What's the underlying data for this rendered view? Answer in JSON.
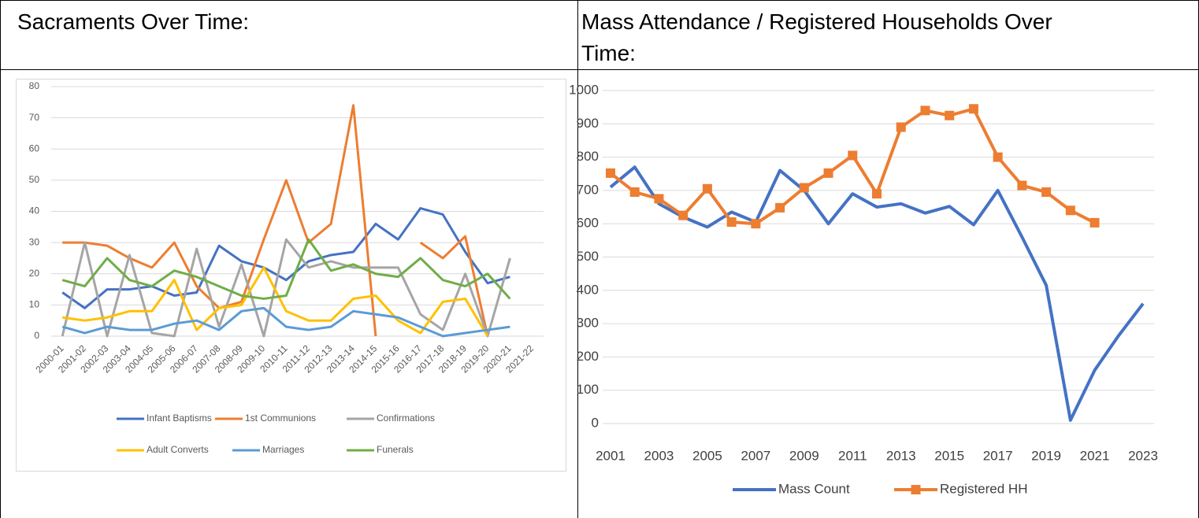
{
  "table": {
    "headers": [
      "Sacraments Over Time:",
      "Mass Attendance / Registered Households Over Time:"
    ]
  },
  "chart_data": [
    {
      "type": "line",
      "categories": [
        "2000-01",
        "2001-02",
        "2002-03",
        "2003-04",
        "2004-05",
        "2005-06",
        "2006-07",
        "2007-08",
        "2008-09",
        "2009-10",
        "2010-11",
        "2011-12",
        "2012-13",
        "2013-14",
        "2014-15",
        "2015-16",
        "2016-17",
        "2017-18",
        "2018-19",
        "2019-20",
        "2020-21",
        "2021-22"
      ],
      "series": [
        {
          "name": "Infant Baptisms",
          "color": "#4472c4",
          "values": [
            14,
            9,
            15,
            15,
            16,
            13,
            14,
            29,
            24,
            22,
            18,
            24,
            26,
            27,
            36,
            31,
            41,
            39,
            27,
            17,
            19,
            null
          ]
        },
        {
          "name": "1st Communions",
          "color": "#ed7d31",
          "values": [
            30,
            30,
            29,
            25,
            22,
            30,
            16,
            9,
            11,
            31,
            50,
            30,
            36,
            74,
            0,
            null,
            30,
            25,
            32,
            0,
            null,
            null
          ]
        },
        {
          "name": "Confirmations",
          "color": "#a5a5a5",
          "values": [
            0,
            30,
            0,
            26,
            1,
            0,
            28,
            3,
            23,
            0,
            31,
            22,
            24,
            22,
            22,
            22,
            7,
            2,
            20,
            0,
            25,
            null
          ]
        },
        {
          "name": "Adult Converts",
          "color": "#ffc000",
          "values": [
            6,
            5,
            6,
            8,
            8,
            18,
            2,
            9,
            10,
            22,
            8,
            5,
            5,
            12,
            13,
            5,
            1,
            11,
            12,
            0,
            null,
            null
          ]
        },
        {
          "name": "Marriages",
          "color": "#5b9bd5",
          "values": [
            3,
            1,
            3,
            2,
            2,
            4,
            5,
            2,
            8,
            9,
            3,
            2,
            3,
            8,
            7,
            6,
            3,
            0,
            1,
            2,
            3,
            null
          ]
        },
        {
          "name": "Funerals",
          "color": "#70ad47",
          "values": [
            18,
            16,
            25,
            18,
            16,
            21,
            19,
            16,
            13,
            12,
            13,
            31,
            21,
            23,
            20,
            19,
            25,
            18,
            16,
            20,
            12,
            null
          ]
        }
      ],
      "ylim": [
        0,
        80
      ],
      "yticks": [
        0,
        10,
        20,
        30,
        40,
        50,
        60,
        70,
        80
      ],
      "grid": true,
      "legend": "bottom"
    },
    {
      "type": "line",
      "x": [
        2001,
        2002,
        2003,
        2004,
        2005,
        2006,
        2007,
        2008,
        2009,
        2010,
        2011,
        2012,
        2013,
        2014,
        2015,
        2016,
        2017,
        2018,
        2019,
        2020,
        2021,
        2022,
        2023
      ],
      "series": [
        {
          "name": "Mass Count",
          "color": "#4472c4",
          "values": [
            710,
            770,
            660,
            620,
            590,
            635,
            605,
            760,
            700,
            600,
            690,
            650,
            660,
            632,
            652,
            597,
            700,
            560,
            415,
            10,
            160,
            265,
            360
          ]
        },
        {
          "name": "Registered HH",
          "color": "#ed7d31",
          "marker": "square",
          "values": [
            752,
            695,
            675,
            625,
            705,
            605,
            600,
            648,
            708,
            752,
            805,
            690,
            890,
            940,
            925,
            945,
            800,
            715,
            695,
            640,
            603,
            null,
            null
          ]
        }
      ],
      "xlim": [
        2001,
        2023
      ],
      "xticks": [
        2001,
        2003,
        2005,
        2007,
        2009,
        2011,
        2013,
        2015,
        2017,
        2019,
        2021,
        2023
      ],
      "ylim": [
        0,
        1000
      ],
      "yticks": [
        0,
        100,
        200,
        300,
        400,
        500,
        600,
        700,
        800,
        900,
        1000
      ],
      "grid": true,
      "legend": "bottom"
    }
  ]
}
